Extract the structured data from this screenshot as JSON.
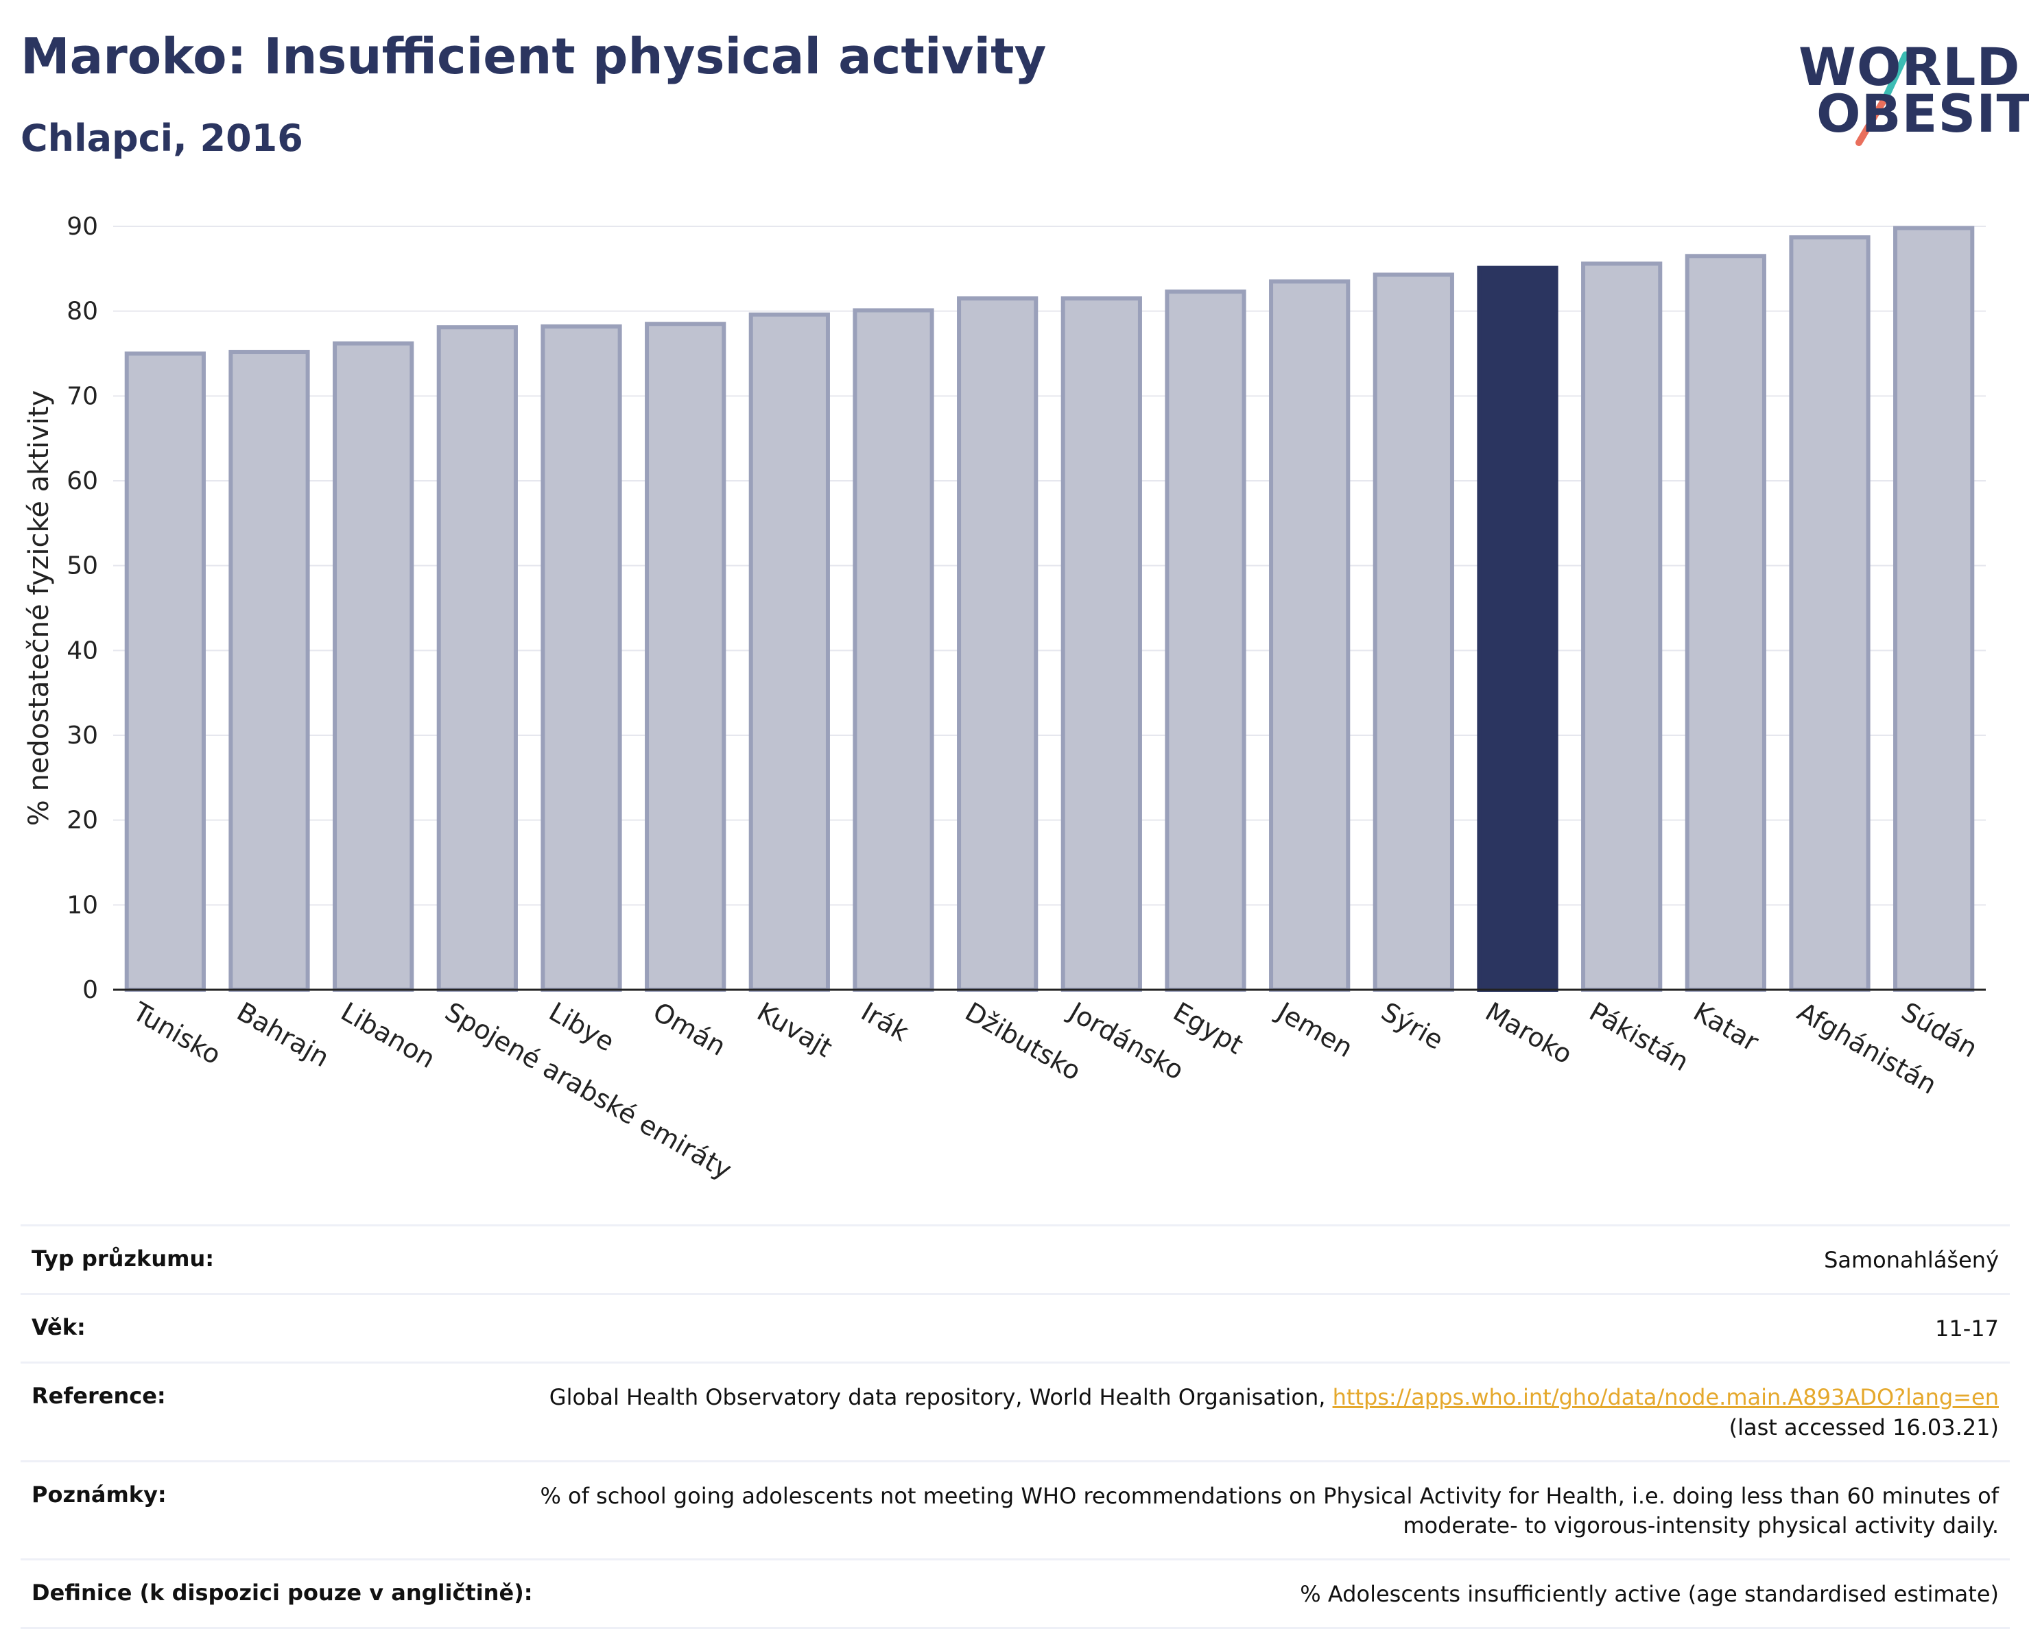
{
  "header": {
    "title": "Maroko: Insufficient physical activity",
    "subtitle": "Chlapci, 2016"
  },
  "logo": {
    "line1": "WORLD",
    "line2": "OBESITY"
  },
  "colors": {
    "highlight": "#2b3560",
    "bar": "#bfc2d0",
    "bar_border": "#9aa0ba",
    "title": "#2b3560",
    "link": "#e5a82c"
  },
  "chart_data": {
    "type": "bar",
    "title": "",
    "xlabel": "",
    "ylabel": "% nedostatečné fyzické aktivity",
    "ylim": [
      0,
      90
    ],
    "yticks": [
      0,
      10,
      20,
      30,
      40,
      50,
      60,
      70,
      80,
      90
    ],
    "grid": true,
    "highlight": "Maroko",
    "categories": [
      "Tunisko",
      "Bahrajn",
      "Libanon",
      "Spojené arabské emiráty",
      "Libye",
      "Omán",
      "Kuvajt",
      "Irák",
      "Džibutsko",
      "Jordánsko",
      "Egypt",
      "Jemen",
      "Sýrie",
      "Maroko",
      "Pákistán",
      "Katar",
      "Afghánistán",
      "Súdán"
    ],
    "values": [
      75.0,
      75.2,
      76.2,
      78.1,
      78.2,
      78.5,
      79.6,
      80.1,
      81.5,
      81.5,
      82.3,
      83.5,
      84.3,
      85.1,
      85.6,
      86.5,
      88.7,
      89.8
    ]
  },
  "info": {
    "rows": [
      {
        "label": "Typ průzkumu:",
        "value": "Samonahlášený"
      },
      {
        "label": "Věk:",
        "value": "11-17"
      },
      {
        "label": "Reference:",
        "value": "Global Health Observatory data repository, World Health Organisation,",
        "link": "https://apps.who.int/gho/data/node.main.A893ADO?lang=en",
        "value2": "(last accessed 16.03.21)"
      },
      {
        "label": "Poznámky:",
        "value": "% of school going adolescents not meeting WHO recommendations on Physical Activity for Health, i.e. doing less than 60 minutes of moderate- to vigorous-intensity physical activity daily."
      },
      {
        "label": "Definice (k dispozici pouze v angličtině):",
        "value": "% Adolescents insufficiently active (age standardised estimate)"
      }
    ]
  }
}
